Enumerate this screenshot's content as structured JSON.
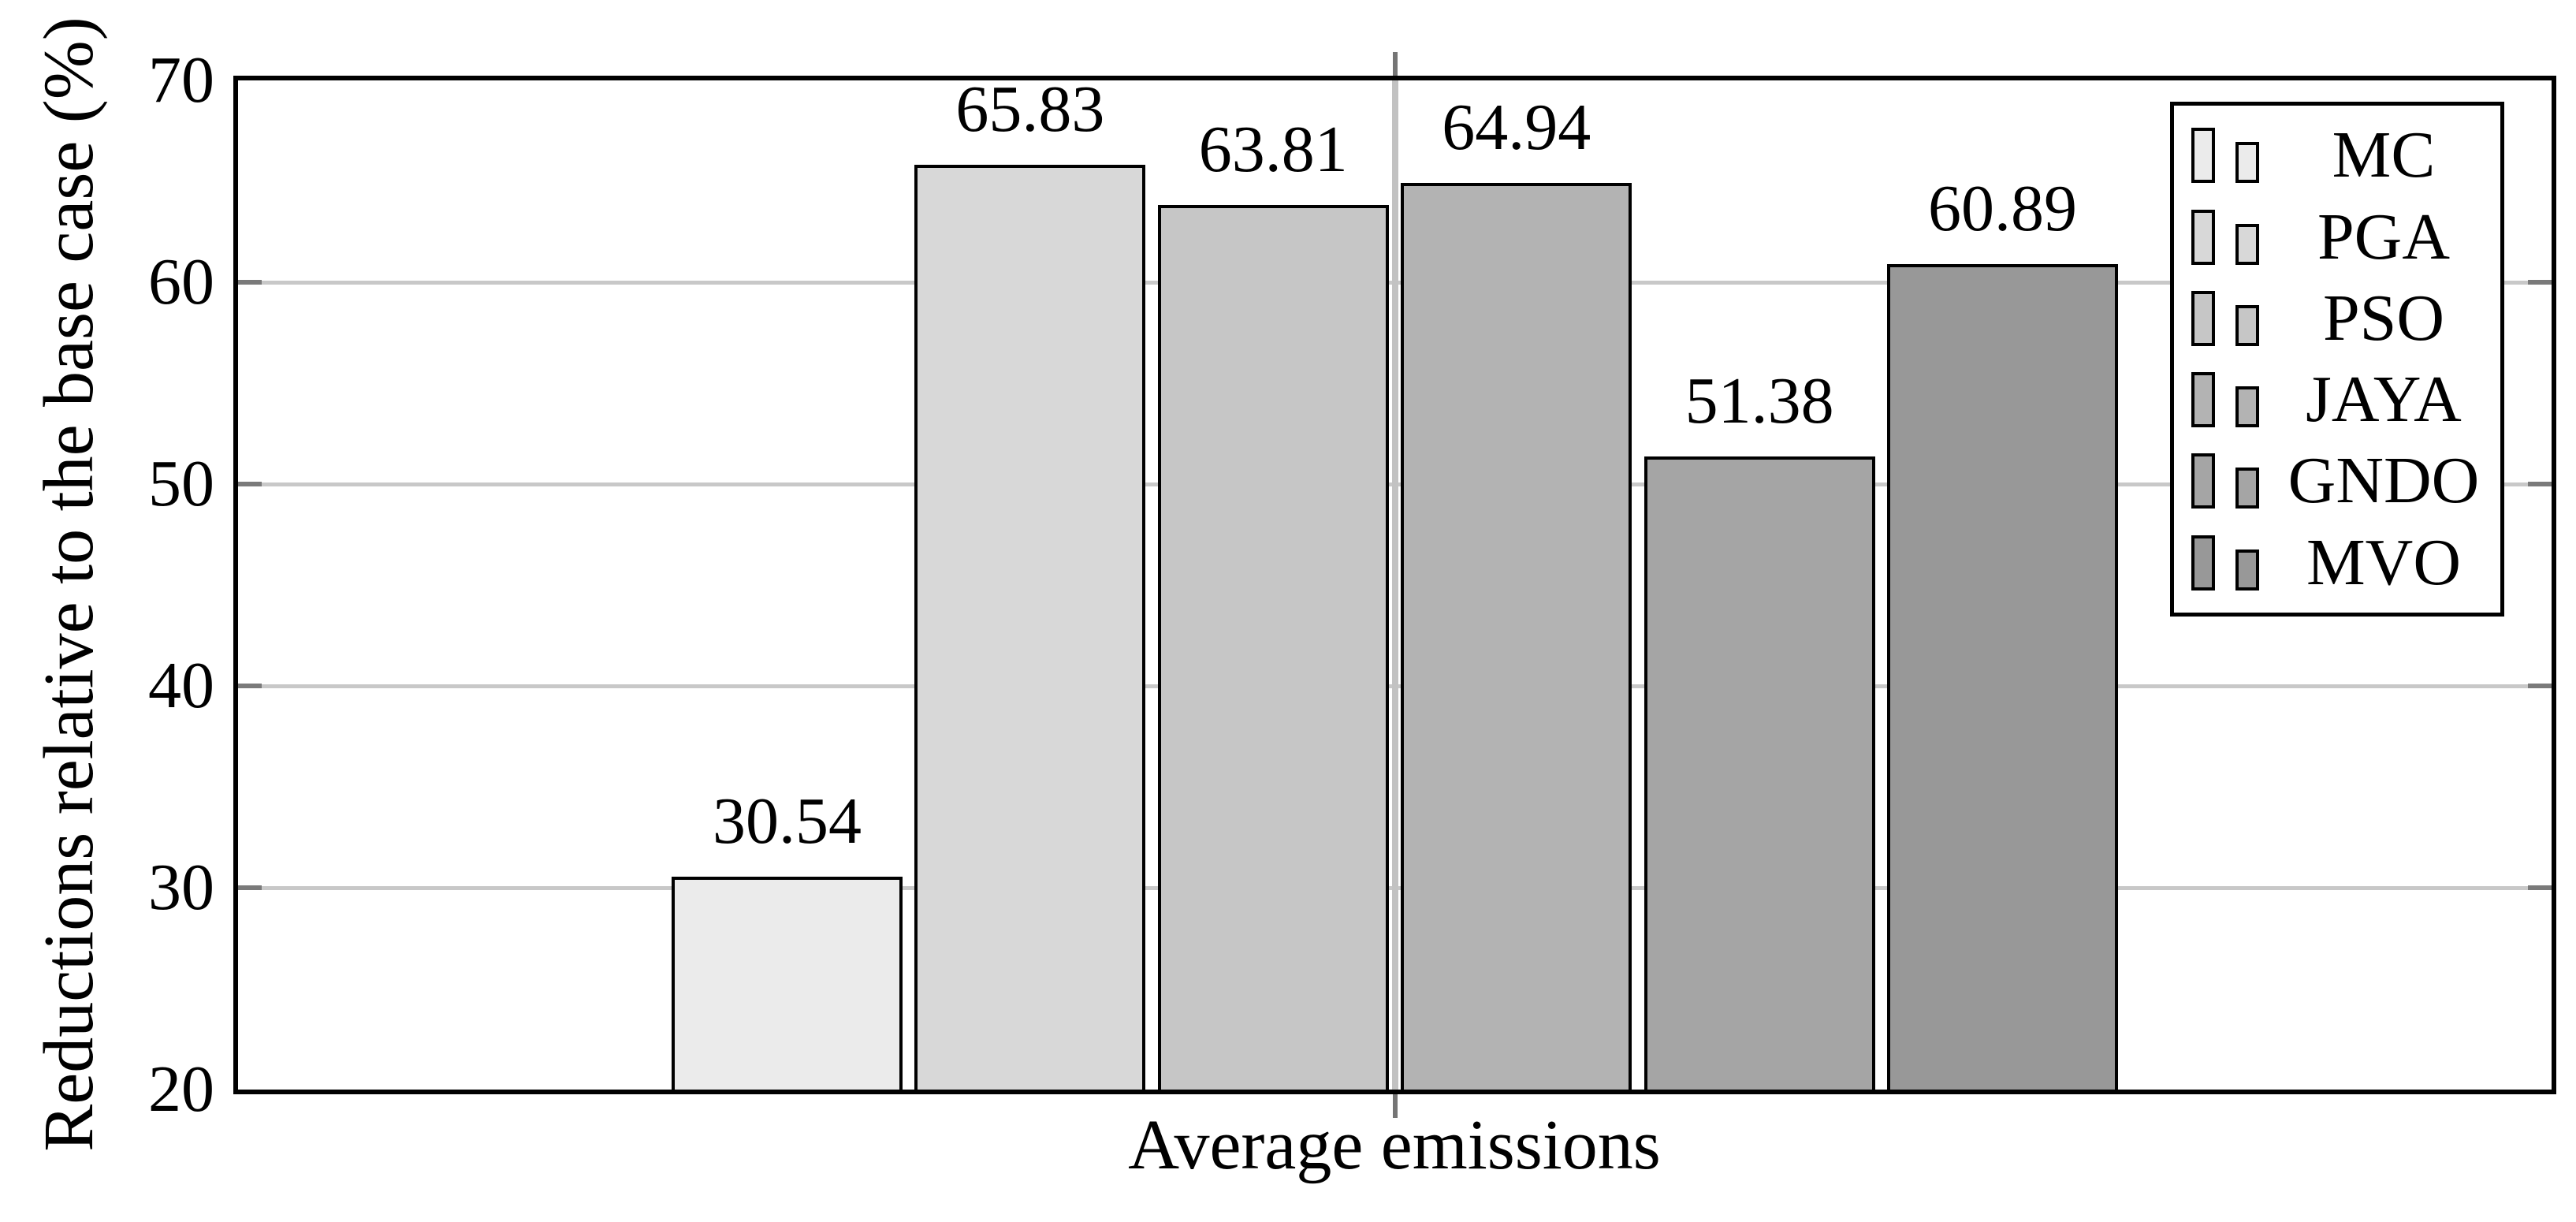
{
  "figure": {
    "ylabel": "Reductions relative to the base case (%)",
    "xlabel": "Average emissions"
  },
  "chart_data": {
    "type": "bar",
    "title": "",
    "xlabel": "Average emissions",
    "ylabel": "Reductions relative to the base case (%)",
    "categories": [
      "MC",
      "PGA",
      "PSO",
      "JAYA",
      "GNDO",
      "MVO"
    ],
    "values": [
      30.54,
      65.83,
      63.81,
      64.94,
      51.38,
      60.89
    ],
    "value_labels": [
      "30.54",
      "65.83",
      "63.81",
      "64.94",
      "51.38",
      "60.89"
    ],
    "bar_colors": [
      "#ebebeb",
      "#d8d8d8",
      "#c6c6c6",
      "#b3b3b3",
      "#a5a5a5",
      "#989898"
    ],
    "ylim": [
      20,
      70
    ],
    "yticks": [
      20,
      30,
      40,
      50,
      60,
      70
    ],
    "ytick_labels": [
      "20",
      "30",
      "40",
      "50",
      "60",
      "70"
    ],
    "grid": "horizontal gridlines at 30-60 plus vertical gridline at category center",
    "legend_position": "top-right inside plot",
    "legend_entries": [
      "MC",
      "PGA",
      "PSO",
      "JAYA",
      "GNDO",
      "MVO"
    ]
  },
  "style_colors": {
    "axis_border": "#000000",
    "gridline": "#c8c8c8",
    "center_gridline": "#c2c2c2",
    "tick_mark": "#7a7a7a",
    "outside_tick_mark": "#757575",
    "bar_border": "#000000",
    "background": "#ffffff"
  }
}
